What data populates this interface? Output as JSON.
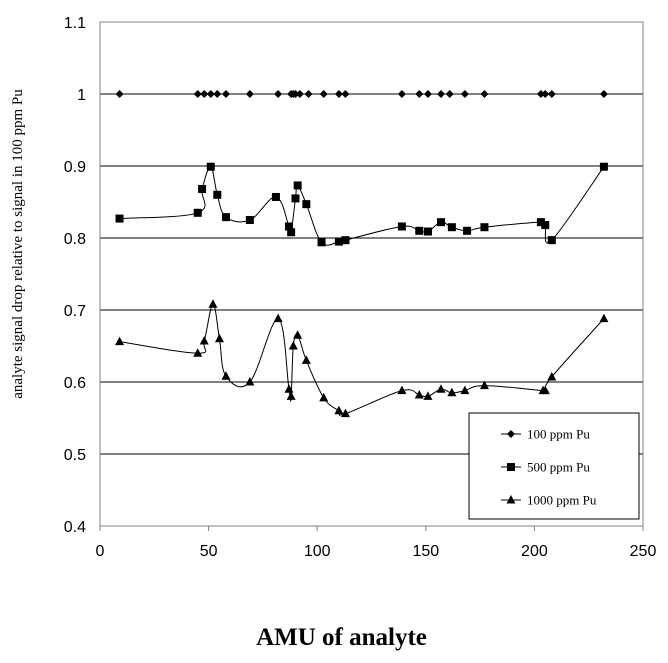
{
  "chart_data": {
    "type": "line",
    "title": "",
    "xlabel": "AMU of analyte",
    "ylabel": "analyte signal drop relative to signal in 100 ppm Pu",
    "xlim": [
      0,
      250
    ],
    "ylim": [
      0.4,
      1.1
    ],
    "xticks": [
      0,
      50,
      100,
      150,
      200,
      250
    ],
    "yticks": [
      0.4,
      0.5,
      0.6,
      0.7,
      0.8,
      0.9,
      1,
      1.1
    ],
    "ytick_labels": [
      "0.4",
      "0.5",
      "0.6",
      "0.7",
      "0.8",
      "0.9",
      "1",
      "1.1"
    ],
    "grid": "horizontal",
    "legend_position": "bottom-right",
    "series": [
      {
        "name": "100 ppm Pu",
        "marker": "diamond",
        "x": [
          9,
          45,
          48,
          51,
          54,
          58,
          69,
          82,
          88,
          89,
          90,
          92,
          96,
          103,
          110,
          113,
          139,
          147,
          151,
          157,
          161,
          168,
          177,
          203,
          205,
          208,
          232
        ],
        "y": [
          1,
          1,
          1,
          1,
          1,
          1,
          1,
          1,
          1,
          1,
          1,
          1,
          1,
          1,
          1,
          1,
          1,
          1,
          1,
          1,
          1,
          1,
          1,
          1,
          1,
          1,
          1
        ]
      },
      {
        "name": "500 ppm Pu",
        "marker": "square",
        "x": [
          9,
          45,
          47,
          51,
          54,
          58,
          69,
          81,
          87,
          88,
          90,
          91,
          95,
          102,
          110,
          113,
          139,
          147,
          151,
          157,
          162,
          169,
          177,
          203,
          205,
          208,
          232
        ],
        "y": [
          0.827,
          0.835,
          0.868,
          0.899,
          0.86,
          0.829,
          0.825,
          0.857,
          0.816,
          0.808,
          0.855,
          0.873,
          0.847,
          0.794,
          0.795,
          0.797,
          0.816,
          0.81,
          0.809,
          0.822,
          0.815,
          0.81,
          0.815,
          0.822,
          0.818,
          0.797,
          0.899
        ]
      },
      {
        "name": "1000 ppm Pu",
        "marker": "triangle",
        "x": [
          9,
          45,
          48,
          52,
          55,
          58,
          69,
          82,
          87,
          88,
          89,
          91,
          95,
          103,
          110,
          113,
          139,
          147,
          151,
          157,
          162,
          168,
          177,
          204,
          205,
          208,
          232
        ],
        "y": [
          0.656,
          0.64,
          0.657,
          0.708,
          0.66,
          0.608,
          0.6,
          0.688,
          0.59,
          0.58,
          0.65,
          0.665,
          0.63,
          0.578,
          0.56,
          0.556,
          0.588,
          0.582,
          0.58,
          0.59,
          0.585,
          0.588,
          0.595,
          0.588,
          0.588,
          0.607,
          0.688
        ]
      }
    ]
  }
}
